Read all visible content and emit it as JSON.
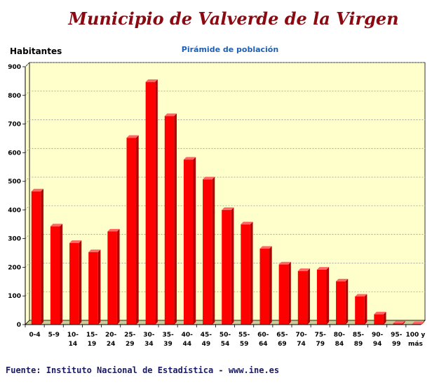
{
  "header": {
    "title": "Municipio de Valverde de la Virgen"
  },
  "footer": {
    "source": "Fuente: Instituto Nacional de Estadística - www.ine.es"
  },
  "colors": {
    "title": "#8b0a12",
    "chart_title": "#1f5fb0",
    "plot_background": "#ffffcc",
    "floor": "#cccc99",
    "bar": "#ff0000",
    "bar_dark": "#b00000",
    "bar_top": "#ff6666",
    "source_text": "#1a1a66"
  },
  "chart_data": {
    "type": "bar",
    "title": "Pirámide de población",
    "xlabel": "",
    "ylabel": "Habitantes",
    "ylim": [
      0,
      900
    ],
    "yticks": [
      0,
      100,
      200,
      300,
      400,
      500,
      600,
      700,
      800,
      900
    ],
    "grid": true,
    "legend": "none",
    "categories": [
      [
        "0-4"
      ],
      [
        "5-9"
      ],
      [
        "10-",
        "14"
      ],
      [
        "15-",
        "19"
      ],
      [
        "20-",
        "24"
      ],
      [
        "25-",
        "29"
      ],
      [
        "30-",
        "34"
      ],
      [
        "35-",
        "39"
      ],
      [
        "40-",
        "44"
      ],
      [
        "45-",
        "49"
      ],
      [
        "50-",
        "54"
      ],
      [
        "55-",
        "59"
      ],
      [
        "60-",
        "64"
      ],
      [
        "65-",
        "69"
      ],
      [
        "70-",
        "74"
      ],
      [
        "75-",
        "79"
      ],
      [
        "80-",
        "84"
      ],
      [
        "85-",
        "89"
      ],
      [
        "90-",
        "94"
      ],
      [
        "95-",
        "99"
      ],
      [
        "100 y",
        "más"
      ]
    ],
    "values": [
      465,
      343,
      285,
      253,
      325,
      652,
      847,
      728,
      576,
      507,
      400,
      350,
      265,
      210,
      187,
      192,
      151,
      98,
      36,
      4,
      2
    ]
  }
}
